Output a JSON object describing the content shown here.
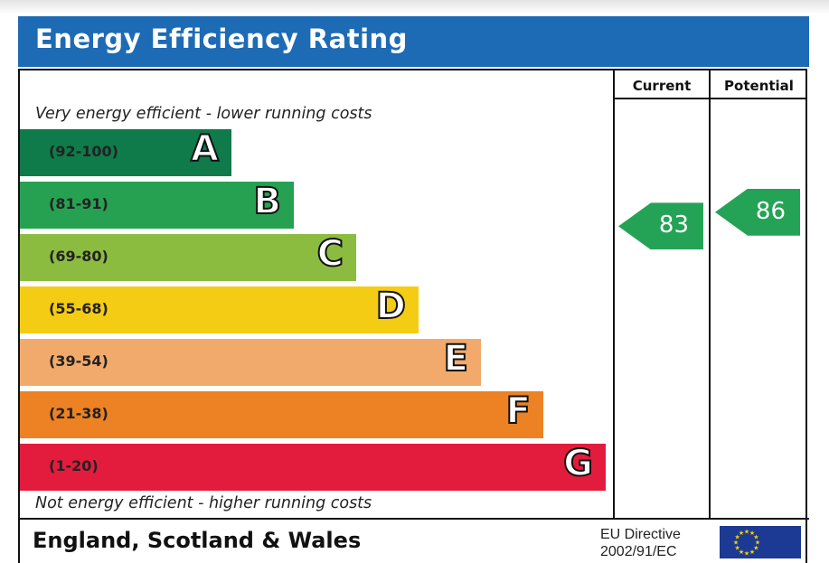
{
  "title": "Energy Efficiency Rating",
  "columns": {
    "current": "Current",
    "potential": "Potential"
  },
  "captions": {
    "top": "Very energy efficient - lower running costs",
    "bottom": "Not energy efficient - higher running costs"
  },
  "footer": {
    "region": "England, Scotland & Wales",
    "directive_line1": "EU Directive",
    "directive_line2": "2002/91/EC"
  },
  "colors": {
    "title_bar": "#1d6ab5",
    "rating_arrow": "#24a356",
    "flag": "#1c3a94",
    "flag_stars": "#f7d100"
  },
  "chart_data": {
    "type": "bar",
    "categories": [
      "A",
      "B",
      "C",
      "D",
      "E",
      "F",
      "G"
    ],
    "bands": [
      {
        "letter": "A",
        "range": "(92-100)",
        "color": "#0f7a4a"
      },
      {
        "letter": "B",
        "range": "(81-91)",
        "color": "#26a152"
      },
      {
        "letter": "C",
        "range": "(69-80)",
        "color": "#8cbc3f"
      },
      {
        "letter": "D",
        "range": "(55-68)",
        "color": "#f5cc14"
      },
      {
        "letter": "E",
        "range": "(39-54)",
        "color": "#f1aa6b"
      },
      {
        "letter": "F",
        "range": "(21-38)",
        "color": "#ec8224"
      },
      {
        "letter": "G",
        "range": "(1-20)",
        "color": "#e31c3d"
      }
    ],
    "current": 83,
    "potential": 86
  }
}
